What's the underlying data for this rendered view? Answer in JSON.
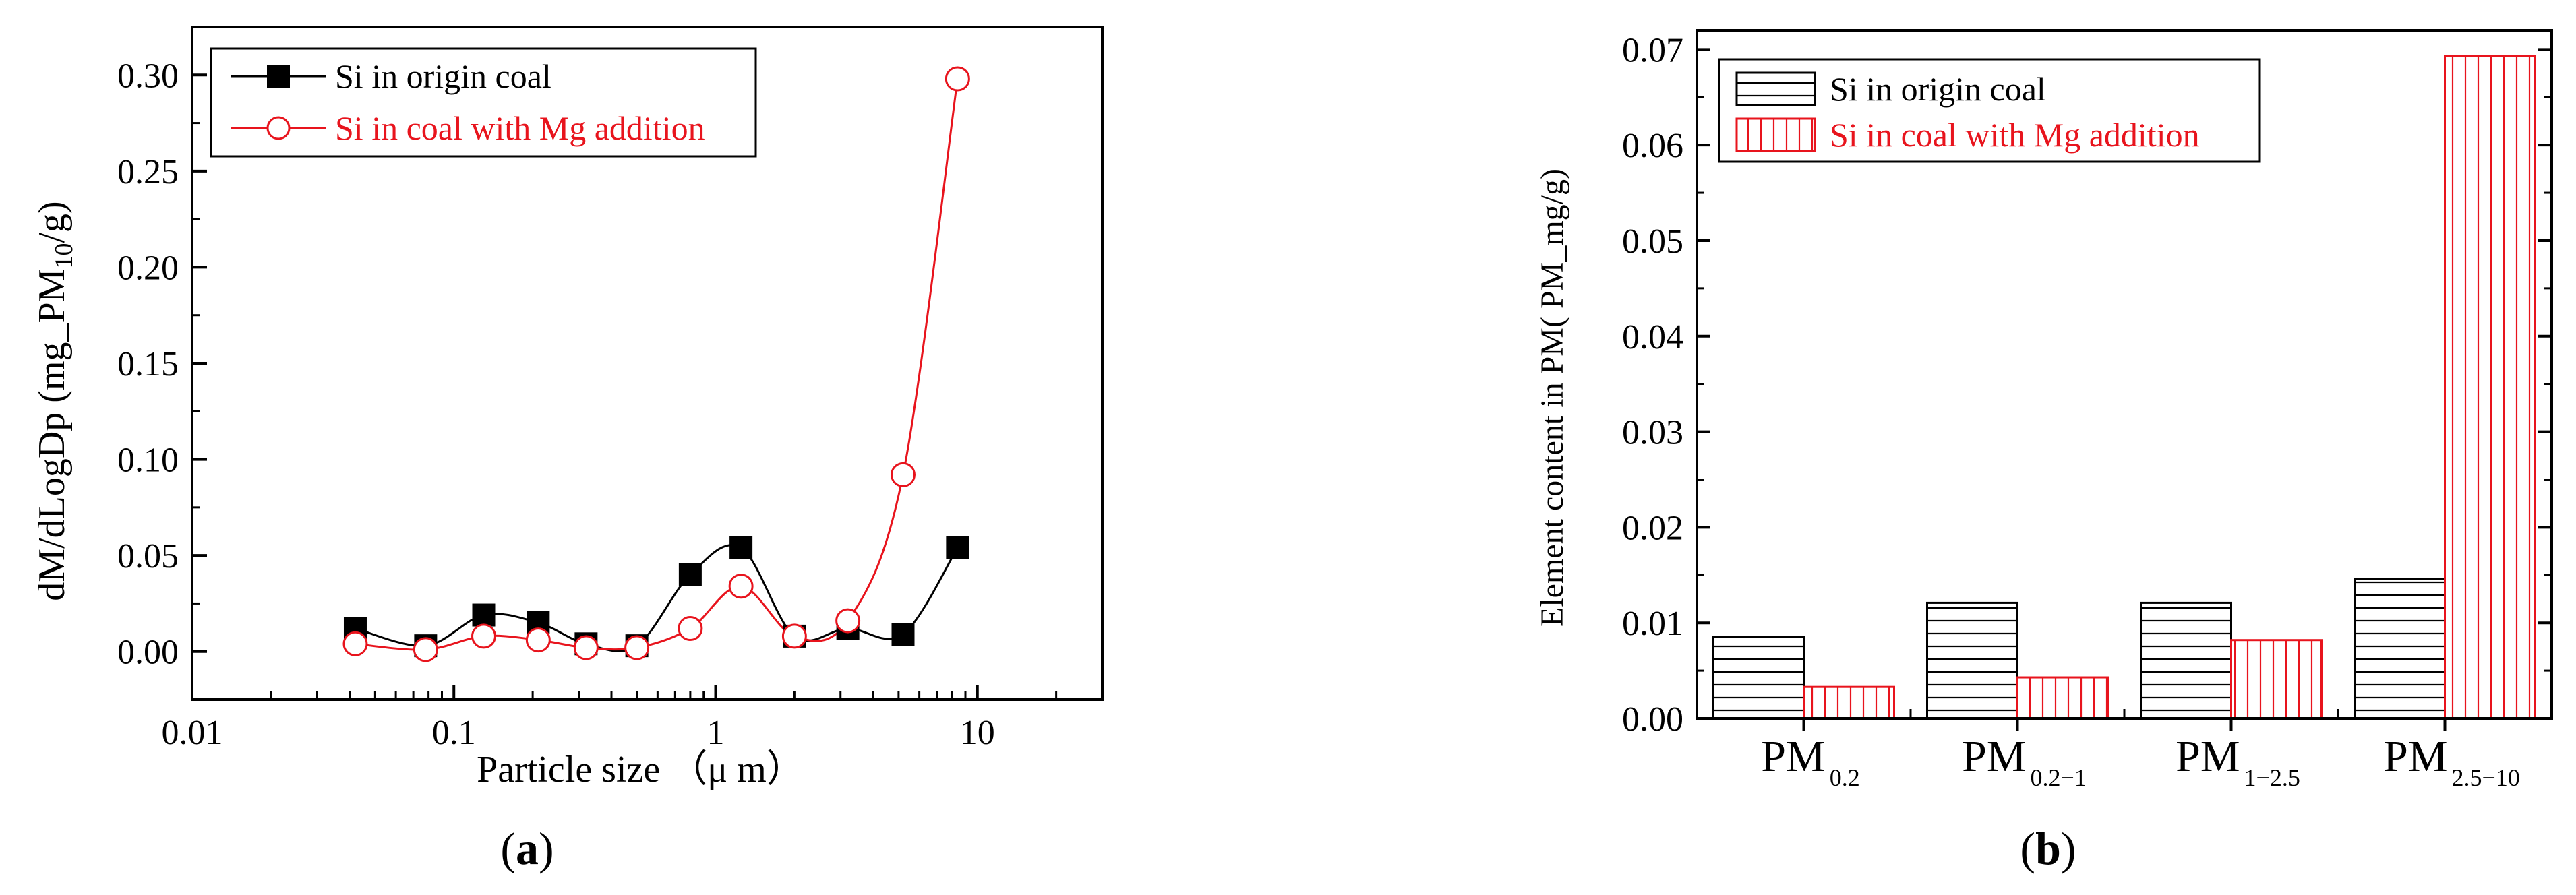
{
  "chart_data": [
    {
      "type": "scatter",
      "panel_label": "a",
      "xlabel_main": "Particle size ",
      "xlabel_unit": "（μ m）",
      "ylabel_main": "dM/dLogDp (mg_PM",
      "ylabel_sub": "10",
      "ylabel_end": "/g)",
      "x_scale": "log",
      "xlim": [
        0.01,
        30
      ],
      "ylim": [
        -0.025,
        0.325
      ],
      "x_ticks": [
        0.01,
        0.1,
        1,
        10
      ],
      "x_tick_labels": [
        "0.01",
        "0.1",
        "1",
        "10"
      ],
      "y_ticks": [
        0.0,
        0.05,
        0.1,
        0.15,
        0.2,
        0.25,
        0.3
      ],
      "y_tick_labels": [
        "0.00",
        "0.05",
        "0.10",
        "0.15",
        "0.20",
        "0.25",
        "0.30"
      ],
      "legend_position": "top-left",
      "series": [
        {
          "name": "Si in origin coal",
          "color": "#000000",
          "marker": "filled-square",
          "x": [
            0.042,
            0.078,
            0.13,
            0.21,
            0.32,
            0.5,
            0.8,
            1.25,
            2.0,
            3.2,
            5.2,
            8.4
          ],
          "y": [
            0.012,
            0.003,
            0.019,
            0.015,
            0.004,
            0.003,
            0.04,
            0.054,
            0.008,
            0.012,
            0.009,
            0.054
          ]
        },
        {
          "name": "Si in coal with Mg addition",
          "color": "#e8141d",
          "marker": "open-circle",
          "x": [
            0.042,
            0.078,
            0.13,
            0.21,
            0.32,
            0.5,
            0.8,
            1.25,
            2.0,
            3.2,
            5.2,
            8.4
          ],
          "y": [
            0.004,
            0.001,
            0.008,
            0.006,
            0.002,
            0.002,
            0.012,
            0.034,
            0.008,
            0.016,
            0.092,
            0.298
          ]
        }
      ]
    },
    {
      "type": "bar",
      "panel_label": "b",
      "ylabel": "Element content in PM(   PM_mg/g)",
      "ylim": [
        0,
        0.072
      ],
      "y_ticks": [
        0.0,
        0.01,
        0.02,
        0.03,
        0.04,
        0.05,
        0.06,
        0.07
      ],
      "y_tick_labels": [
        "0.00",
        "0.01",
        "0.02",
        "0.03",
        "0.04",
        "0.05",
        "0.06",
        "0.07"
      ],
      "categories": [
        {
          "main": "PM",
          "sub": "0.2"
        },
        {
          "main": "PM",
          "sub": "0.2−1"
        },
        {
          "main": "PM",
          "sub": "1−2.5"
        },
        {
          "main": "PM",
          "sub": "2.5−10"
        }
      ],
      "legend_position": "top-left",
      "series": [
        {
          "name": "Si in origin coal",
          "color": "#000000",
          "hatch": "horizontal",
          "values": [
            0.0085,
            0.0121,
            0.0121,
            0.0146
          ]
        },
        {
          "name": "Si in coal with Mg addition",
          "color": "#e8141d",
          "hatch": "vertical",
          "values": [
            0.0033,
            0.0043,
            0.0082,
            0.0693
          ]
        }
      ]
    }
  ]
}
